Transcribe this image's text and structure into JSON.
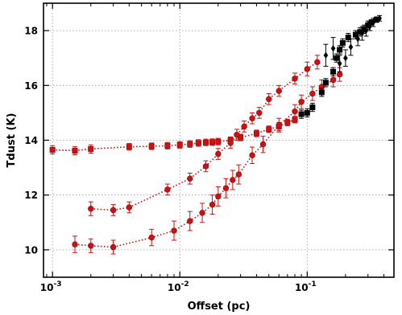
{
  "chart_data": {
    "type": "scatter",
    "title": "",
    "xlabel": "Offset (pc)",
    "ylabel": "Tdust (K)",
    "xscale": "log",
    "xlim": [
      0.00085,
      0.48
    ],
    "ylim": [
      9,
      19
    ],
    "grid": true,
    "legend": "none",
    "x_ticks": [
      {
        "value": 0.001,
        "base": "10",
        "exp": "-3"
      },
      {
        "value": 0.01,
        "base": "10",
        "exp": "-2"
      },
      {
        "value": 0.1,
        "base": "10",
        "exp": "-1"
      }
    ],
    "y_ticks": [
      10,
      12,
      14,
      16,
      18
    ],
    "series": [
      {
        "color": "#cc1111",
        "marker": "square",
        "line": "dotted",
        "points": [
          {
            "x": 0.001,
            "y": 13.65,
            "err": 0.15
          },
          {
            "x": 0.0015,
            "y": 13.62,
            "err": 0.15
          },
          {
            "x": 0.002,
            "y": 13.68,
            "err": 0.15
          },
          {
            "x": 0.004,
            "y": 13.76,
            "err": 0.12
          },
          {
            "x": 0.006,
            "y": 13.78,
            "err": 0.12
          },
          {
            "x": 0.008,
            "y": 13.8,
            "err": 0.12
          },
          {
            "x": 0.01,
            "y": 13.83,
            "err": 0.12
          },
          {
            "x": 0.012,
            "y": 13.86,
            "err": 0.12
          },
          {
            "x": 0.014,
            "y": 13.9,
            "err": 0.12
          },
          {
            "x": 0.016,
            "y": 13.92,
            "err": 0.12
          },
          {
            "x": 0.018,
            "y": 13.93,
            "err": 0.12
          },
          {
            "x": 0.02,
            "y": 13.95,
            "err": 0.12
          },
          {
            "x": 0.025,
            "y": 14.0,
            "err": 0.12
          },
          {
            "x": 0.03,
            "y": 14.1,
            "err": 0.12
          },
          {
            "x": 0.04,
            "y": 14.25,
            "err": 0.12
          },
          {
            "x": 0.05,
            "y": 14.4,
            "err": 0.12
          },
          {
            "x": 0.06,
            "y": 14.5,
            "err": 0.15
          },
          {
            "x": 0.07,
            "y": 14.65,
            "err": 0.12
          },
          {
            "x": 0.08,
            "y": 14.75,
            "err": 0.12
          }
        ]
      },
      {
        "color": "#cc1111",
        "marker": "circle",
        "line": "dotted",
        "points": [
          {
            "x": 0.002,
            "y": 11.5,
            "err": 0.25
          },
          {
            "x": 0.003,
            "y": 11.45,
            "err": 0.2
          },
          {
            "x": 0.004,
            "y": 11.55,
            "err": 0.2
          },
          {
            "x": 0.008,
            "y": 12.2,
            "err": 0.2
          },
          {
            "x": 0.012,
            "y": 12.6,
            "err": 0.2
          },
          {
            "x": 0.016,
            "y": 13.05,
            "err": 0.2
          },
          {
            "x": 0.02,
            "y": 13.5,
            "err": 0.2
          },
          {
            "x": 0.025,
            "y": 13.9,
            "err": 0.2
          },
          {
            "x": 0.028,
            "y": 14.2,
            "err": 0.2
          },
          {
            "x": 0.032,
            "y": 14.5,
            "err": 0.2
          },
          {
            "x": 0.037,
            "y": 14.8,
            "err": 0.2
          },
          {
            "x": 0.042,
            "y": 15.0,
            "err": 0.2
          },
          {
            "x": 0.05,
            "y": 15.5,
            "err": 0.2
          },
          {
            "x": 0.06,
            "y": 15.8,
            "err": 0.2
          },
          {
            "x": 0.08,
            "y": 16.25,
            "err": 0.2
          },
          {
            "x": 0.1,
            "y": 16.6,
            "err": 0.25
          },
          {
            "x": 0.12,
            "y": 16.85,
            "err": 0.25
          }
        ]
      },
      {
        "color": "#cc1111",
        "marker": "circle",
        "line": "dotted",
        "points": [
          {
            "x": 0.0015,
            "y": 10.2,
            "err": 0.3
          },
          {
            "x": 0.002,
            "y": 10.15,
            "err": 0.25
          },
          {
            "x": 0.003,
            "y": 10.1,
            "err": 0.25
          },
          {
            "x": 0.006,
            "y": 10.45,
            "err": 0.3
          },
          {
            "x": 0.009,
            "y": 10.7,
            "err": 0.35
          },
          {
            "x": 0.012,
            "y": 11.05,
            "err": 0.35
          },
          {
            "x": 0.015,
            "y": 11.35,
            "err": 0.35
          },
          {
            "x": 0.018,
            "y": 11.65,
            "err": 0.35
          },
          {
            "x": 0.02,
            "y": 11.95,
            "err": 0.35
          },
          {
            "x": 0.023,
            "y": 12.25,
            "err": 0.35
          },
          {
            "x": 0.026,
            "y": 12.55,
            "err": 0.35
          },
          {
            "x": 0.029,
            "y": 12.75,
            "err": 0.35
          },
          {
            "x": 0.037,
            "y": 13.45,
            "err": 0.3
          },
          {
            "x": 0.045,
            "y": 13.85,
            "err": 0.3
          },
          {
            "x": 0.06,
            "y": 14.55,
            "err": 0.25
          },
          {
            "x": 0.08,
            "y": 15.05,
            "err": 0.25
          },
          {
            "x": 0.09,
            "y": 15.4,
            "err": 0.25
          },
          {
            "x": 0.11,
            "y": 15.7,
            "err": 0.25
          },
          {
            "x": 0.13,
            "y": 15.95,
            "err": 0.25
          },
          {
            "x": 0.16,
            "y": 16.2,
            "err": 0.25
          },
          {
            "x": 0.18,
            "y": 16.4,
            "err": 0.25
          }
        ]
      },
      {
        "color": "#000000",
        "marker": "square",
        "line": "none",
        "points": [
          {
            "x": 0.09,
            "y": 14.95,
            "err": 0.15
          },
          {
            "x": 0.1,
            "y": 15.0,
            "err": 0.15
          },
          {
            "x": 0.11,
            "y": 15.2,
            "err": 0.15
          },
          {
            "x": 0.13,
            "y": 15.75,
            "err": 0.15
          },
          {
            "x": 0.14,
            "y": 16.1,
            "err": 0.15
          },
          {
            "x": 0.16,
            "y": 16.5,
            "err": 0.15
          },
          {
            "x": 0.17,
            "y": 17.0,
            "err": 0.15
          },
          {
            "x": 0.18,
            "y": 17.3,
            "err": 0.15
          },
          {
            "x": 0.19,
            "y": 17.55,
            "err": 0.15
          },
          {
            "x": 0.21,
            "y": 17.75,
            "err": 0.15
          },
          {
            "x": 0.24,
            "y": 17.85,
            "err": 0.15
          },
          {
            "x": 0.26,
            "y": 17.95,
            "err": 0.15
          },
          {
            "x": 0.28,
            "y": 18.05,
            "err": 0.15
          },
          {
            "x": 0.3,
            "y": 18.2,
            "err": 0.15
          },
          {
            "x": 0.32,
            "y": 18.3,
            "err": 0.1
          },
          {
            "x": 0.35,
            "y": 18.4,
            "err": 0.1
          }
        ]
      },
      {
        "color": "#000000",
        "marker": "diamond",
        "line": "none",
        "points": [
          {
            "x": 0.14,
            "y": 17.1,
            "err": 0.4
          },
          {
            "x": 0.16,
            "y": 17.35,
            "err": 0.4
          },
          {
            "x": 0.18,
            "y": 16.8,
            "err": 0.3
          },
          {
            "x": 0.2,
            "y": 17.0,
            "err": 0.3
          },
          {
            "x": 0.22,
            "y": 17.4,
            "err": 0.3
          },
          {
            "x": 0.25,
            "y": 17.7,
            "err": 0.25
          },
          {
            "x": 0.27,
            "y": 17.9,
            "err": 0.25
          },
          {
            "x": 0.29,
            "y": 18.0,
            "err": 0.2
          },
          {
            "x": 0.31,
            "y": 18.15,
            "err": 0.15
          },
          {
            "x": 0.33,
            "y": 18.3,
            "err": 0.15
          },
          {
            "x": 0.37,
            "y": 18.45,
            "err": 0.1
          }
        ]
      }
    ]
  }
}
